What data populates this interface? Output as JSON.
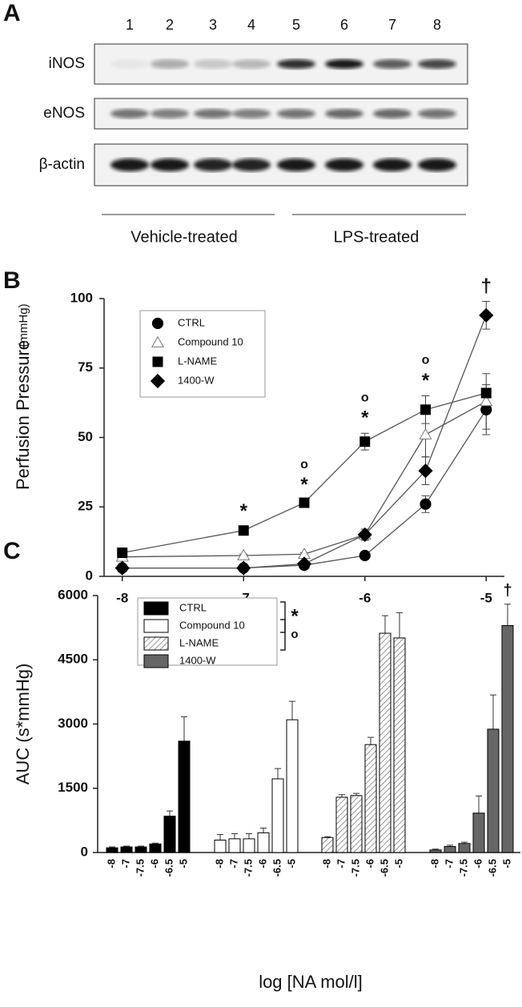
{
  "blot": {
    "panel_label": "A",
    "lanes": [
      "1",
      "2",
      "3",
      "4",
      "5",
      "6",
      "7",
      "8"
    ],
    "rows": [
      "iNOS",
      "eNOS",
      "β-actin"
    ],
    "groups": [
      "Vehicle-treated",
      "LPS-treated"
    ]
  },
  "chart_data": [
    {
      "type": "line",
      "panel_label": "B",
      "ylabel": "Perfusion  Pressure",
      "ylabel_unit": "(mmHg)",
      "x": [
        -8,
        -7,
        -6.5,
        -6,
        -5.5,
        -5
      ],
      "xlim": [
        -8.15,
        -4.85
      ],
      "xticks": [
        -8,
        -7,
        -6,
        -5
      ],
      "ylim": [
        0,
        100
      ],
      "yticks": [
        0,
        25,
        50,
        75,
        100
      ],
      "series": [
        {
          "name": "CTRL",
          "marker": "circle",
          "color": "#000000",
          "values": [
            3,
            3,
            4,
            7.5,
            26,
            60
          ],
          "errors": [
            0.5,
            0.5,
            0.5,
            1,
            3,
            9
          ]
        },
        {
          "name": "Compound 10",
          "marker": "triangle",
          "color": "#ffffff",
          "values": [
            7,
            7.5,
            8,
            15,
            51,
            63
          ],
          "errors": [
            0.5,
            0.5,
            0.5,
            2,
            8,
            10
          ]
        },
        {
          "name": "L-NAME",
          "marker": "square",
          "color": "#000000",
          "values": [
            8.5,
            16.5,
            26.5,
            48.5,
            60,
            66
          ],
          "errors": [
            1,
            1.5,
            1,
            3,
            5,
            1
          ]
        },
        {
          "name": "1400-W",
          "marker": "diamond",
          "color": "#000000",
          "values": [
            3,
            3,
            4.5,
            15,
            38,
            94
          ],
          "errors": [
            0.5,
            0.5,
            0.5,
            2,
            5,
            5
          ]
        }
      ],
      "annotations": [
        {
          "text": "*",
          "x": -7
        },
        {
          "text": "*",
          "x": -6.5
        },
        {
          "text": "o",
          "x": -6.5
        },
        {
          "text": "*",
          "x": -6
        },
        {
          "text": "o",
          "x": -6
        },
        {
          "text": "*",
          "x": -5.5
        },
        {
          "text": "o",
          "x": -5.5
        },
        {
          "text": "†",
          "x": -5
        }
      ]
    },
    {
      "type": "grouped_bar",
      "panel_label": "C",
      "ylabel": "AUC (s*mmHg)",
      "xlabel": "log [NA mol/l]",
      "categories": [
        "-8",
        "-7",
        "-7.5",
        "-6",
        "-6.5",
        "-5"
      ],
      "ylim": [
        0,
        6000
      ],
      "yticks": [
        0,
        1500,
        3000,
        4500,
        6000
      ],
      "series": [
        {
          "name": "CTRL",
          "color": "#000000",
          "values": [
            110,
            130,
            130,
            200,
            850,
            2600
          ],
          "errors": [
            20,
            20,
            20,
            20,
            120,
            570
          ]
        },
        {
          "name": "Compound 10",
          "color": "#ffffff",
          "values": [
            290,
            320,
            320,
            460,
            1720,
            3100
          ],
          "errors": [
            130,
            120,
            120,
            110,
            240,
            430
          ]
        },
        {
          "name": "L-NAME",
          "color": "#ffffff",
          "hatch": true,
          "values": [
            350,
            1290,
            1330,
            2520,
            5120,
            5010
          ],
          "errors": [
            20,
            60,
            50,
            170,
            410,
            590
          ]
        },
        {
          "name": "1400-W",
          "color": "#666666",
          "values": [
            60,
            140,
            210,
            920,
            2880,
            5300
          ],
          "errors": [
            20,
            30,
            30,
            400,
            800,
            500
          ]
        }
      ],
      "annotations": [
        {
          "text": "*",
          "between": [
            "CTRL",
            "Compound 10"
          ]
        },
        {
          "text": "o",
          "between": [
            "Compound 10",
            "L-NAME"
          ]
        },
        {
          "text": "†",
          "series": "1400-W"
        }
      ]
    }
  ]
}
